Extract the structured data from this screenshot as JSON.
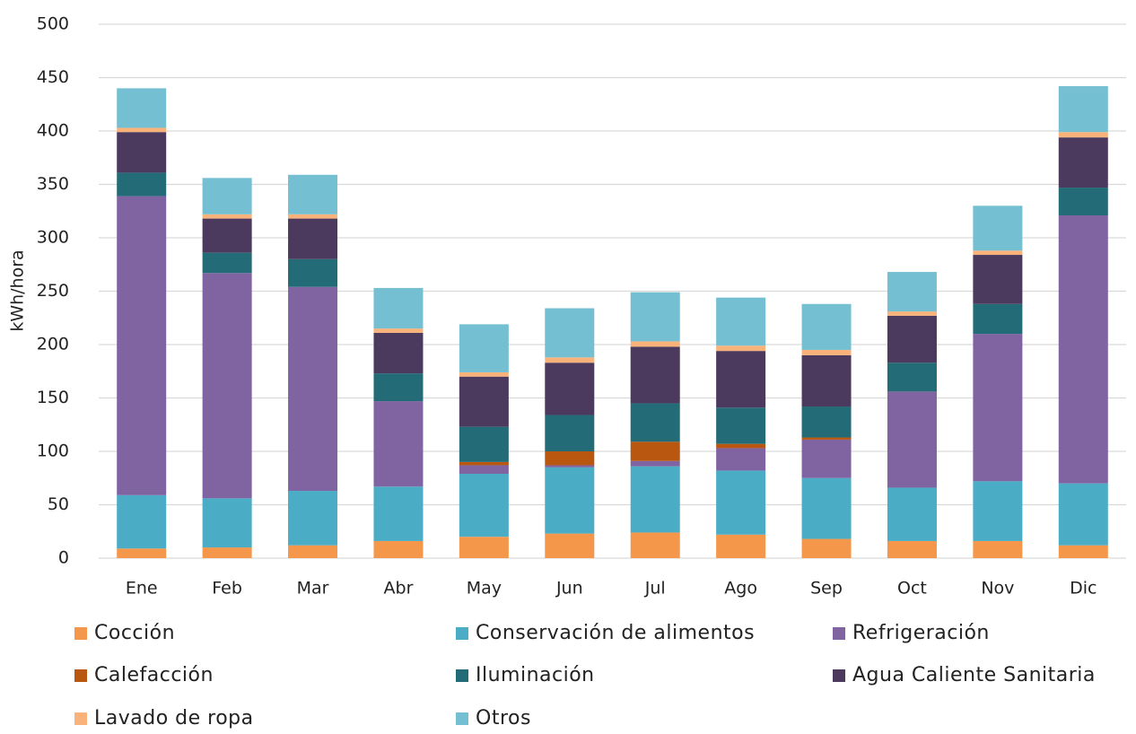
{
  "chart_data": {
    "type": "stacked_bar",
    "y_label": "kWh/hora",
    "categories": [
      "Ene",
      "Feb",
      "Mar",
      "Abr",
      "May",
      "Jun",
      "Jul",
      "Ago",
      "Sep",
      "Oct",
      "Nov",
      "Dic"
    ],
    "series": [
      {
        "name": "Cocción",
        "color": "#f4974a",
        "values": [
          9,
          10,
          12,
          16,
          20,
          23,
          24,
          22,
          18,
          16,
          16,
          12
        ]
      },
      {
        "name": "Conservación de alimentos",
        "color": "#4bacc6",
        "values": [
          50,
          46,
          51,
          51,
          59,
          62,
          62,
          60,
          57,
          50,
          56,
          58
        ]
      },
      {
        "name": "Refrigeración",
        "color": "#8064a2",
        "values": [
          280,
          211,
          191,
          80,
          8,
          2,
          5,
          21,
          36,
          90,
          138,
          251
        ]
      },
      {
        "name": "Calefacción",
        "color": "#b9560f",
        "values": [
          0,
          0,
          0,
          0,
          3,
          13,
          18,
          4,
          2,
          0,
          0,
          0
        ]
      },
      {
        "name": "Iluminación",
        "color": "#246b78",
        "values": [
          22,
          19,
          26,
          26,
          33,
          34,
          36,
          34,
          29,
          27,
          28,
          26
        ]
      },
      {
        "name": "Agua Caliente Sanitaria",
        "color": "#4b3a5e",
        "values": [
          38,
          32,
          38,
          38,
          47,
          49,
          53,
          53,
          48,
          44,
          46,
          47
        ]
      },
      {
        "name": "Lavado de ropa",
        "color": "#f9b27a",
        "values": [
          4,
          4,
          4,
          4,
          4,
          5,
          5,
          5,
          5,
          4,
          4,
          5
        ]
      },
      {
        "name": "Otros",
        "color": "#74bfd2",
        "values": [
          37,
          34,
          37,
          38,
          45,
          46,
          46,
          45,
          43,
          37,
          42,
          43
        ]
      }
    ],
    "ylim": [
      0,
      500
    ],
    "yticks": [
      0,
      50,
      100,
      150,
      200,
      250,
      300,
      350,
      400,
      450,
      500
    ],
    "grid": true
  }
}
